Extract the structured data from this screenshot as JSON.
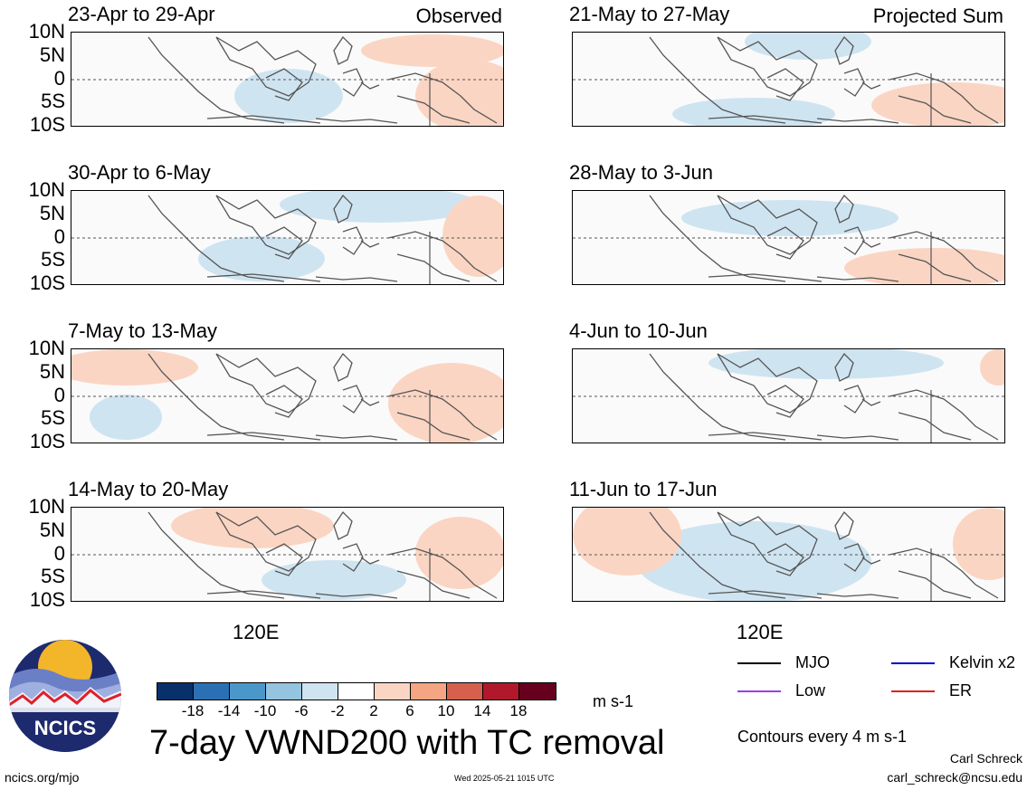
{
  "panels": [
    {
      "title": "23-Apr to 29-Apr",
      "tag": "Observed"
    },
    {
      "title": "30-Apr to 6-May",
      "tag": ""
    },
    {
      "title": "7-May to 13-May",
      "tag": ""
    },
    {
      "title": "14-May to 20-May",
      "tag": ""
    },
    {
      "title": "21-May to 27-May",
      "tag": "Projected Sum"
    },
    {
      "title": "28-May to 3-Jun",
      "tag": ""
    },
    {
      "title": "4-Jun to 10-Jun",
      "tag": ""
    },
    {
      "title": "11-Jun to 17-Jun",
      "tag": ""
    }
  ],
  "y_ticks": [
    "10N",
    "5N",
    "0",
    "5S",
    "10S"
  ],
  "x_tick": "120E",
  "colorbar": {
    "colors": [
      "#08306b",
      "#2c70b4",
      "#4a98c9",
      "#94c4df",
      "#cfe4f1",
      "#ffffff",
      "#fbd5c3",
      "#f4a582",
      "#d6604d",
      "#b2182b",
      "#67001f"
    ],
    "ticks": [
      "-18",
      "-14",
      "-10",
      "-6",
      "-2",
      "2",
      "6",
      "10",
      "14",
      "18"
    ],
    "units": "m s-1"
  },
  "title": "7-day VWND200 with TC removal",
  "legend": [
    {
      "label": "MJO",
      "color": "#000000"
    },
    {
      "label": "Kelvin x2",
      "color": "#0000cc"
    },
    {
      "label": "Low",
      "color": "#9b3ee6"
    },
    {
      "label": "ER",
      "color": "#e02020"
    }
  ],
  "contours_note": "Contours every 4 m s-1",
  "author": "Carl Schreck",
  "email": "carl_schreck@ncsu.edu",
  "url": "ncics.org/mjo",
  "timestamp": "Wed 2025-05-21 1015 UTC",
  "logo_text": "NCICS"
}
